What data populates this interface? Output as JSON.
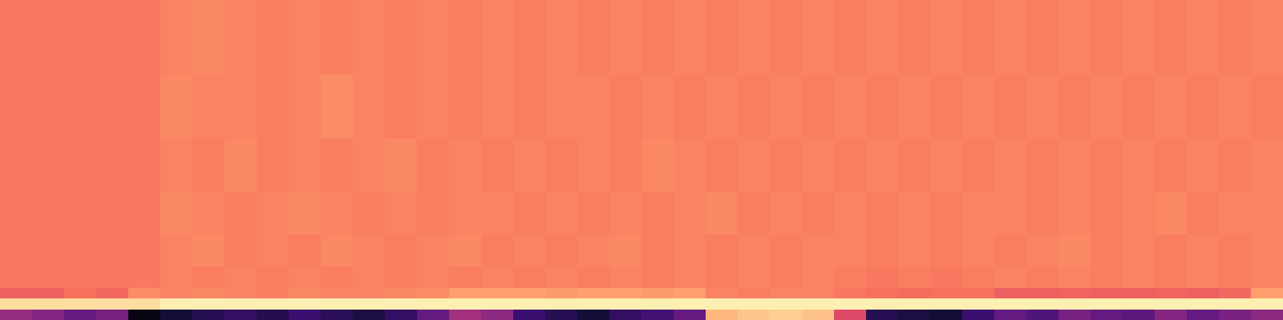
{
  "chart_data": {
    "type": "heatmap",
    "x": [
      0,
      1,
      2,
      3,
      4,
      5,
      6,
      7,
      8,
      9,
      10,
      11,
      12,
      13,
      14,
      15,
      16,
      17,
      18,
      19,
      20,
      21,
      22,
      23,
      24,
      25,
      26,
      27,
      28,
      29,
      30,
      31,
      32,
      33,
      34,
      35,
      36,
      37,
      38,
      39,
      40
    ],
    "y": [
      0,
      1,
      2,
      3,
      5,
      8,
      12,
      17,
      23,
      30
    ],
    "xlim": [
      0,
      40
    ],
    "ylim": [
      0,
      30
    ],
    "zlim": [
      0,
      1
    ],
    "tick_labels": false,
    "cells": [
      [
        0.42,
        0.38,
        0.3,
        0.35,
        0.03,
        0.1,
        0.15,
        0.18,
        0.14,
        0.2,
        0.16,
        0.12,
        0.18,
        0.3,
        0.45,
        0.4,
        0.2,
        0.15,
        0.1,
        0.18,
        0.22,
        0.3,
        0.85,
        0.88,
        0.9,
        0.87,
        0.6,
        0.15,
        0.12,
        0.1,
        0.2,
        0.3,
        0.25,
        0.35,
        0.3,
        0.28,
        0.38,
        0.3,
        0.35,
        0.4
      ],
      [
        0.93,
        0.93,
        0.93,
        0.93,
        0.93,
        0.97,
        0.97,
        0.97,
        0.97,
        0.97,
        0.97,
        0.97,
        0.97,
        0.97,
        0.97,
        0.97,
        0.97,
        0.97,
        0.97,
        0.97,
        0.97,
        0.97,
        0.97,
        0.97,
        0.97,
        0.97,
        0.97,
        0.97,
        0.97,
        0.97,
        0.97,
        0.97,
        0.97,
        0.97,
        0.97,
        0.97,
        0.97,
        0.97,
        0.97,
        0.97
      ],
      [
        0.66,
        0.66,
        0.7,
        0.68,
        0.76,
        0.74,
        0.75,
        0.74,
        0.73,
        0.75,
        0.74,
        0.74,
        0.75,
        0.76,
        0.8,
        0.8,
        0.8,
        0.79,
        0.8,
        0.8,
        0.79,
        0.8,
        0.74,
        0.73,
        0.74,
        0.74,
        0.72,
        0.7,
        0.69,
        0.7,
        0.7,
        0.66,
        0.66,
        0.67,
        0.66,
        0.66,
        0.67,
        0.66,
        0.68,
        0.8
      ],
      [
        0.72,
        0.71,
        0.72,
        0.71,
        0.72,
        0.74,
        0.73,
        0.74,
        0.73,
        0.74,
        0.73,
        0.74,
        0.73,
        0.74,
        0.73,
        0.74,
        0.73,
        0.74,
        0.73,
        0.74,
        0.73,
        0.74,
        0.73,
        0.74,
        0.73,
        0.74,
        0.73,
        0.72,
        0.73,
        0.72,
        0.73,
        0.74,
        0.73,
        0.74,
        0.73,
        0.74,
        0.73,
        0.74,
        0.73,
        0.74
      ],
      [
        0.71,
        0.72,
        0.71,
        0.72,
        0.71,
        0.74,
        0.75,
        0.73,
        0.74,
        0.73,
        0.75,
        0.74,
        0.73,
        0.74,
        0.75,
        0.73,
        0.74,
        0.73,
        0.74,
        0.75,
        0.73,
        0.74,
        0.73,
        0.74,
        0.73,
        0.74,
        0.74,
        0.73,
        0.74,
        0.73,
        0.74,
        0.73,
        0.74,
        0.75,
        0.73,
        0.74,
        0.73,
        0.74,
        0.73,
        0.74
      ],
      [
        0.72,
        0.71,
        0.72,
        0.71,
        0.72,
        0.75,
        0.74,
        0.73,
        0.74,
        0.75,
        0.74,
        0.73,
        0.74,
        0.73,
        0.74,
        0.74,
        0.73,
        0.74,
        0.73,
        0.74,
        0.73,
        0.74,
        0.75,
        0.73,
        0.74,
        0.73,
        0.74,
        0.73,
        0.74,
        0.73,
        0.74,
        0.74,
        0.73,
        0.74,
        0.73,
        0.74,
        0.75,
        0.73,
        0.74,
        0.74
      ],
      [
        0.71,
        0.72,
        0.71,
        0.72,
        0.71,
        0.74,
        0.73,
        0.75,
        0.73,
        0.74,
        0.73,
        0.74,
        0.75,
        0.73,
        0.74,
        0.73,
        0.74,
        0.73,
        0.74,
        0.73,
        0.75,
        0.74,
        0.73,
        0.74,
        0.73,
        0.74,
        0.73,
        0.74,
        0.73,
        0.74,
        0.73,
        0.74,
        0.73,
        0.74,
        0.73,
        0.74,
        0.73,
        0.74,
        0.73,
        0.74
      ],
      [
        0.72,
        0.71,
        0.72,
        0.71,
        0.72,
        0.75,
        0.74,
        0.74,
        0.73,
        0.74,
        0.76,
        0.74,
        0.73,
        0.74,
        0.73,
        0.74,
        0.73,
        0.74,
        0.74,
        0.73,
        0.74,
        0.73,
        0.74,
        0.73,
        0.74,
        0.73,
        0.74,
        0.73,
        0.74,
        0.73,
        0.74,
        0.73,
        0.74,
        0.73,
        0.74,
        0.73,
        0.74,
        0.73,
        0.74,
        0.73
      ],
      [
        0.71,
        0.72,
        0.71,
        0.72,
        0.71,
        0.74,
        0.75,
        0.74,
        0.73,
        0.74,
        0.73,
        0.74,
        0.73,
        0.74,
        0.73,
        0.74,
        0.73,
        0.74,
        0.73,
        0.74,
        0.73,
        0.74,
        0.73,
        0.74,
        0.73,
        0.74,
        0.73,
        0.74,
        0.73,
        0.74,
        0.73,
        0.74,
        0.73,
        0.74,
        0.73,
        0.74,
        0.73,
        0.74,
        0.73,
        0.74
      ]
    ]
  }
}
